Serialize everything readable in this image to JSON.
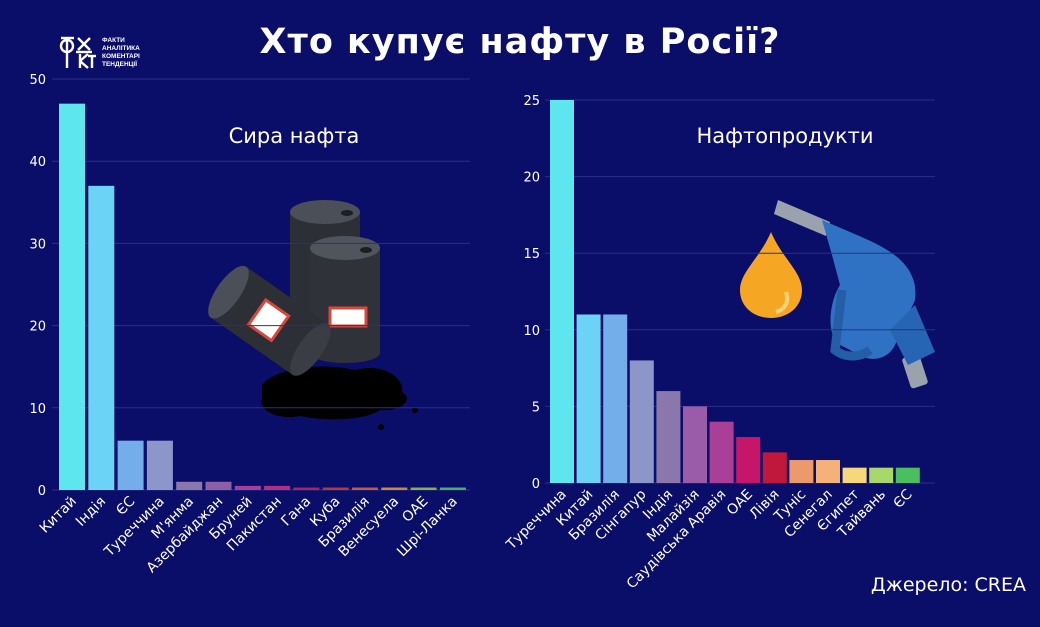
{
  "header": {
    "title": "Хто купує нафту в Росії?",
    "logo_text": "ФАКТИ\nАНАЛІТИКА\nКОМЕНТАРІ\nТЕНДЕНЦІЇ",
    "logo_mark": "ФАКТ"
  },
  "source": "Джерело: CREA",
  "colors": {
    "background": "#0b0e68",
    "grid": "#2a2f86"
  },
  "chart_data": [
    {
      "type": "bar",
      "title": "Сира нафта",
      "ylim": [
        0,
        50
      ],
      "yticks": [
        0,
        10,
        20,
        30,
        40,
        50
      ],
      "categories": [
        "Китай",
        "Індія",
        "ЄС",
        "Туреччина",
        "М'янма",
        "Азербайджан",
        "Бруней",
        "Пакистан",
        "Гана",
        "Куба",
        "Бразилія",
        "Венесуела",
        "ОАЕ",
        "Шрі-Ланка"
      ],
      "values": [
        47,
        37,
        6,
        6,
        1,
        1,
        0.5,
        0.5,
        0.3,
        0.3,
        0.3,
        0.3,
        0.3,
        0.3
      ],
      "bar_colors": [
        "#5ee6ee",
        "#6ad3f6",
        "#74aeea",
        "#8d96c9",
        "#8a78ad",
        "#8d5fa6",
        "#a4409c",
        "#b02e86",
        "#a82464",
        "#b23a3a",
        "#c25b3a",
        "#c98a40",
        "#88b048",
        "#48b06a"
      ]
    },
    {
      "type": "bar",
      "title": "Нафтопродукти",
      "ylim": [
        0,
        25
      ],
      "yticks": [
        0,
        5,
        10,
        15,
        20,
        25
      ],
      "categories": [
        "Туреччина",
        "Китай",
        "Бразилія",
        "Сінгапур",
        "Індія",
        "Малайзія",
        "Саудівська Аравія",
        "ОАЕ",
        "Лівія",
        "Туніс",
        "Сенегал",
        "Єгипет",
        "Тайвань",
        "ЄС"
      ],
      "values": [
        25,
        11,
        11,
        8,
        6,
        5,
        4,
        3,
        2,
        1.5,
        1.5,
        1,
        1,
        1
      ],
      "bar_colors": [
        "#5ee6ee",
        "#6ad3f6",
        "#74aeea",
        "#8d96c9",
        "#8a78ad",
        "#9a5ca8",
        "#ab3f98",
        "#c6166a",
        "#c0183c",
        "#ec9a6c",
        "#f4b27a",
        "#f6d87a",
        "#a8d86a",
        "#4bbe5e"
      ]
    }
  ]
}
